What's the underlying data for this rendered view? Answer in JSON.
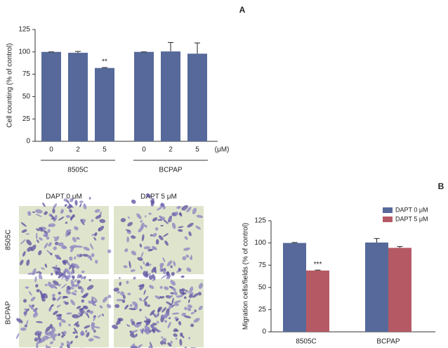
{
  "chart_data": [
    {
      "type": "bar",
      "panel": "A",
      "ylabel": "Cell counting (% of control)",
      "categories": [
        "0",
        "2",
        "5",
        "0",
        "2",
        "5"
      ],
      "groups": [
        "8505C",
        "BCPAP"
      ],
      "unit": "(μM)",
      "values": [
        100,
        99,
        82,
        100,
        100.5,
        98
      ],
      "errors": [
        0,
        1.5,
        0.5,
        0,
        10,
        12
      ],
      "significance": [
        null,
        null,
        "**",
        null,
        null,
        null
      ],
      "color": "#56699a",
      "ylim": [
        0,
        125
      ],
      "yticks": [
        0,
        25,
        50,
        75,
        100,
        125
      ]
    },
    {
      "type": "bar",
      "panel": "B",
      "ylabel": "Migration cells/fields (% of control)",
      "categories": [
        "8505C",
        "BCPAP"
      ],
      "series": [
        {
          "name": "DAPT 0 μM",
          "color": "#56699a",
          "values": [
            100,
            100.5
          ],
          "errors": [
            0.5,
            4.5
          ],
          "significance": [
            null,
            null
          ]
        },
        {
          "name": "DAPT 5 μM",
          "color": "#b55a64",
          "values": [
            69,
            94.5
          ],
          "errors": [
            0.5,
            1.5
          ],
          "significance": [
            "***",
            null
          ]
        }
      ],
      "ylim": [
        0,
        125
      ],
      "yticks": [
        0,
        25,
        50,
        75,
        100,
        125
      ],
      "legend": "top-right"
    }
  ],
  "images": {
    "columns": [
      "DAPT 0 μM",
      "DAPT 5 μM"
    ],
    "rows": [
      "8505C",
      "BCPAP"
    ]
  }
}
